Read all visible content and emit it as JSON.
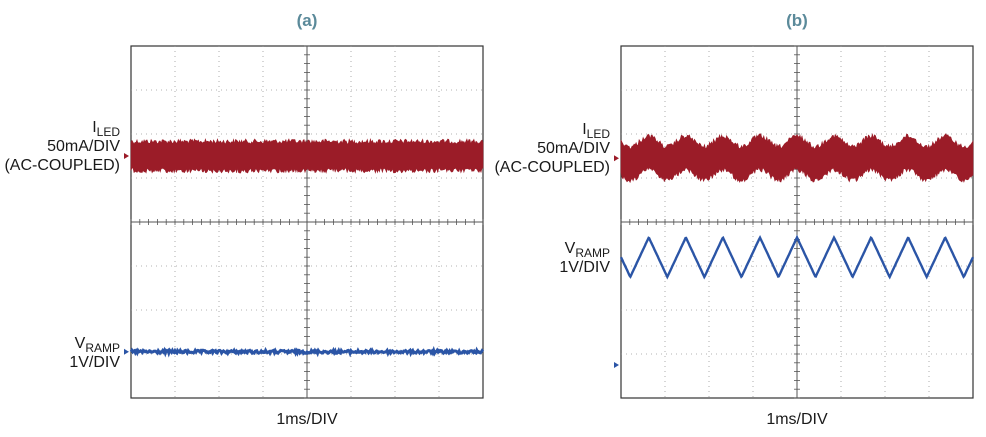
{
  "colors": {
    "iled": "#9b1c28",
    "vramp": "#2b55a6",
    "grid": "#9a9a9a",
    "marker_iled": "#9b1c28",
    "marker_vramp": "#2b55a6",
    "title": "#5b8a9a"
  },
  "chart_data": [
    {
      "type": "line",
      "panel_title": "(a)",
      "grid": true,
      "x_divisions": 8,
      "y_divisions": 8,
      "xlabel": "1ms/DIV",
      "series": [
        {
          "id": "iled",
          "label_main": "I",
          "label_sub": "LED",
          "label_lines": [
            "50mA/DIV",
            "(AC-COUPLED)"
          ],
          "center_div": 2.5,
          "band_half_div": 0.33,
          "ripple_div": 0.0,
          "ripple_periods": 0
        },
        {
          "id": "vramp",
          "label_main": "V",
          "label_sub": "RAMP",
          "label_lines": [
            "1V/DIV"
          ],
          "center_div": 6.95,
          "band_half_div": 0.05,
          "triangle_amplitude_div": 0.0,
          "triangle_periods": 0
        }
      ]
    },
    {
      "type": "line",
      "panel_title": "(b)",
      "grid": true,
      "x_divisions": 8,
      "y_divisions": 8,
      "xlabel": "1ms/DIV",
      "series": [
        {
          "id": "iled",
          "label_main": "I",
          "label_sub": "LED",
          "label_lines": [
            "50mA/DIV",
            "(AC-COUPLED)"
          ],
          "center_div": 2.55,
          "band_half_div": 0.38,
          "ripple_div": 0.12,
          "ripple_periods": 9.5
        },
        {
          "id": "vramp",
          "label_main": "V",
          "label_sub": "RAMP",
          "label_lines": [
            "1V/DIV"
          ],
          "center_div": 4.8,
          "band_half_div": 0.0,
          "triangle_amplitude_div": 0.45,
          "triangle_periods": 9.5,
          "ground_marker_div": 7.25
        }
      ]
    }
  ]
}
